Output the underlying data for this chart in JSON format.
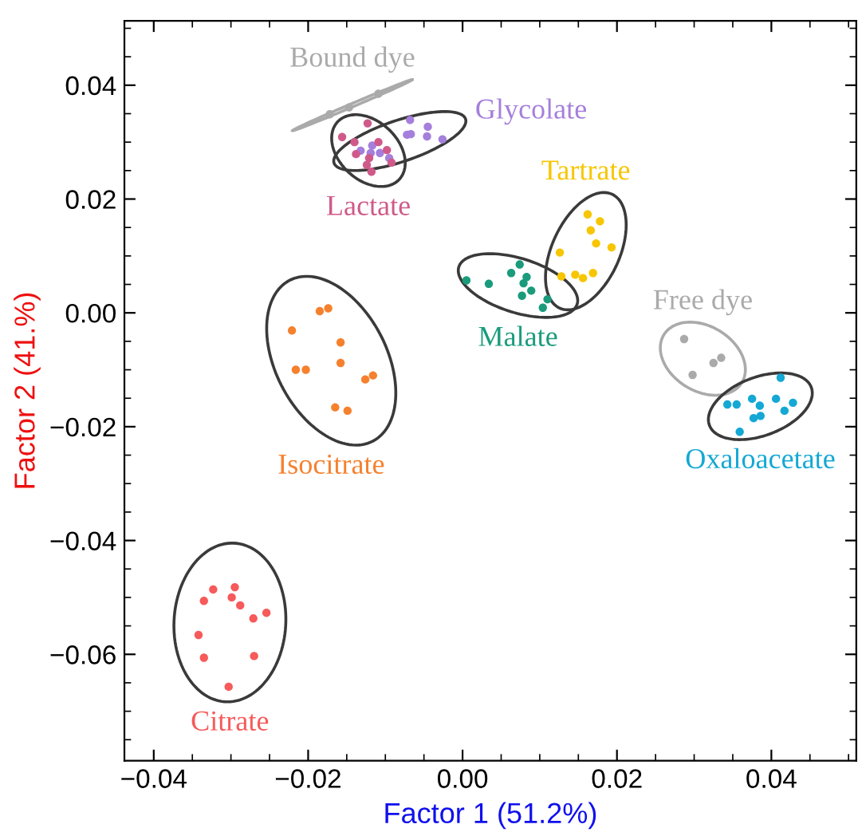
{
  "chart_data": {
    "type": "scatter",
    "xlabel": "Factor 1 (51.2%)",
    "ylabel": "Factor 2 (41.%)",
    "marker": "circle",
    "legend": false,
    "grid": false,
    "xlim": [
      -0.0438,
      0.051
    ],
    "ylim": [
      -0.0787,
      0.0513
    ],
    "xticks": [
      {
        "value": -0.04,
        "label": "−0.04"
      },
      {
        "value": -0.02,
        "label": "−0.02"
      },
      {
        "value": 0,
        "label": "0.00"
      },
      {
        "value": 0.02,
        "label": "0.02"
      },
      {
        "value": 0.04,
        "label": "0.04"
      },
      {
        "value": -0.035,
        "label": null
      },
      {
        "value": -0.03,
        "label": null
      },
      {
        "value": -0.025,
        "label": null
      },
      {
        "value": -0.015,
        "label": null
      },
      {
        "value": -0.01,
        "label": null
      },
      {
        "value": -0.005,
        "label": null
      },
      {
        "value": 0.005,
        "label": null
      },
      {
        "value": 0.01,
        "label": null
      },
      {
        "value": 0.015,
        "label": null
      },
      {
        "value": 0.025,
        "label": null
      },
      {
        "value": 0.03,
        "label": null
      },
      {
        "value": 0.035,
        "label": null
      },
      {
        "value": 0.045,
        "label": null
      },
      {
        "value": 0.05,
        "label": null
      }
    ],
    "yticks": [
      {
        "value": -0.06,
        "label": "−0.06"
      },
      {
        "value": -0.04,
        "label": "−0.04"
      },
      {
        "value": -0.02,
        "label": "−0.02"
      },
      {
        "value": 0,
        "label": "0.00"
      },
      {
        "value": 0.02,
        "label": "0.02"
      },
      {
        "value": 0.04,
        "label": "0.04"
      },
      {
        "value": -0.075,
        "label": null
      },
      {
        "value": -0.07,
        "label": null
      },
      {
        "value": -0.065,
        "label": null
      },
      {
        "value": -0.055,
        "label": null
      },
      {
        "value": -0.05,
        "label": null
      },
      {
        "value": -0.045,
        "label": null
      },
      {
        "value": -0.035,
        "label": null
      },
      {
        "value": -0.03,
        "label": null
      },
      {
        "value": -0.025,
        "label": null
      },
      {
        "value": -0.015,
        "label": null
      },
      {
        "value": -0.01,
        "label": null
      },
      {
        "value": -0.005,
        "label": null
      },
      {
        "value": 0.005,
        "label": null
      },
      {
        "value": 0.01,
        "label": null
      },
      {
        "value": 0.015,
        "label": null
      },
      {
        "value": 0.025,
        "label": null
      },
      {
        "value": 0.03,
        "label": null
      },
      {
        "value": 0.035,
        "label": null
      },
      {
        "value": 0.045,
        "label": null
      },
      {
        "value": 0.05,
        "label": null
      }
    ],
    "series": [
      {
        "name": "Bound dye",
        "color": "#aaaaaa",
        "x": [
          -0.0172,
          -0.0147,
          -0.0109
        ],
        "values": [
          0.0349,
          0.0361,
          0.0385
        ]
      },
      {
        "name": "Glycolate",
        "color": "#a57fdc",
        "x": [
          -0.0132,
          -0.0117,
          -0.0119,
          -0.0107,
          -0.0095,
          -0.0068,
          -0.0045,
          -0.0072,
          -0.0067,
          -0.0046,
          -0.0026
        ],
        "values": [
          0.0285,
          0.0294,
          0.0281,
          0.0281,
          0.0272,
          0.0339,
          0.0327,
          0.0313,
          0.0314,
          0.031,
          0.0305
        ]
      },
      {
        "name": "Lactate",
        "color": "#cf5a8a",
        "x": [
          -0.0156,
          -0.0123,
          -0.014,
          -0.0138,
          -0.0121,
          -0.0109,
          -0.0098,
          -0.0124,
          -0.0118,
          -0.0092
        ],
        "values": [
          0.0309,
          0.0333,
          0.03,
          0.0279,
          0.0272,
          0.03,
          0.0286,
          0.026,
          0.0248,
          0.0264
        ]
      },
      {
        "name": "Tartrate",
        "color": "#f7c600",
        "x": [
          0.0162,
          0.0178,
          0.0166,
          0.0173,
          0.0193,
          0.0126,
          0.0128,
          0.0146,
          0.0156,
          0.0169
        ],
        "values": [
          0.0173,
          0.0161,
          0.0145,
          0.0122,
          0.0115,
          0.0106,
          0.0064,
          0.0067,
          0.0061,
          0.007
        ]
      },
      {
        "name": "Malate",
        "color": "#1a9c7c",
        "x": [
          0.0005,
          0.0034,
          0.0074,
          0.0063,
          0.0083,
          0.0079,
          0.0089,
          0.0077,
          0.011,
          0.0104
        ],
        "values": [
          0.0057,
          0.0051,
          0.0085,
          0.007,
          0.0063,
          0.0052,
          0.0039,
          0.003,
          0.0024,
          0.0009
        ]
      },
      {
        "name": "Free dye",
        "color": "#aaaaaa",
        "x": [
          0.0287,
          0.0298,
          0.0325,
          0.0335
        ],
        "values": [
          -0.0046,
          -0.0109,
          -0.0088,
          -0.0079
        ]
      },
      {
        "name": "Oxaloacetate",
        "color": "#14a8d4",
        "x": [
          0.0412,
          0.0343,
          0.0355,
          0.0375,
          0.0385,
          0.0406,
          0.0428,
          0.0417,
          0.0377,
          0.0386,
          0.0359
        ],
        "values": [
          -0.0114,
          -0.0161,
          -0.0161,
          -0.0151,
          -0.0163,
          -0.0151,
          -0.0158,
          -0.0172,
          -0.0185,
          -0.0181,
          -0.0209
        ]
      },
      {
        "name": "Isocitrate",
        "color": "#f5812e",
        "x": [
          -0.0185,
          -0.0174,
          -0.0221,
          -0.0158,
          -0.0158,
          -0.0216,
          -0.0203,
          -0.0126,
          -0.0116,
          -0.0165,
          -0.0149
        ],
        "values": [
          0.0003,
          0.0008,
          -0.0031,
          -0.0052,
          -0.0088,
          -0.01,
          -0.01,
          -0.0117,
          -0.011,
          -0.0166,
          -0.0172
        ]
      },
      {
        "name": "Citrate",
        "color": "#f65a5a",
        "x": [
          -0.0323,
          -0.0295,
          -0.0335,
          -0.0299,
          -0.0288,
          -0.0271,
          -0.0254,
          -0.0342,
          -0.0335,
          -0.027,
          -0.0303
        ],
        "values": [
          -0.0486,
          -0.0482,
          -0.0506,
          -0.05,
          -0.0514,
          -0.0537,
          -0.0527,
          -0.0566,
          -0.0606,
          -0.0603,
          -0.0657
        ]
      }
    ]
  }
}
